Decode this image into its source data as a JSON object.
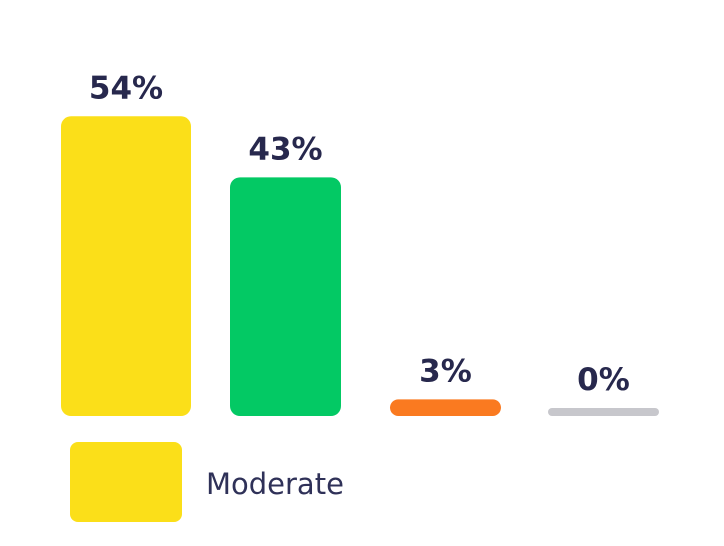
{
  "chart_data": {
    "type": "bar",
    "values": [
      54,
      43,
      3,
      0
    ],
    "value_labels": [
      "54%",
      "43%",
      "3%",
      "0%"
    ],
    "colors": [
      "#FBDF19",
      "#03C964",
      "#FA7A20",
      "#C7C7CC"
    ],
    "ylim": [
      0,
      100
    ],
    "grid": false,
    "legend_position": "bottom-left",
    "legend": [
      {
        "label": "Moderate",
        "color": "#FBDF19"
      }
    ]
  },
  "style": {
    "label_color": "#27284D",
    "legend_text_color": "#2F3158"
  }
}
